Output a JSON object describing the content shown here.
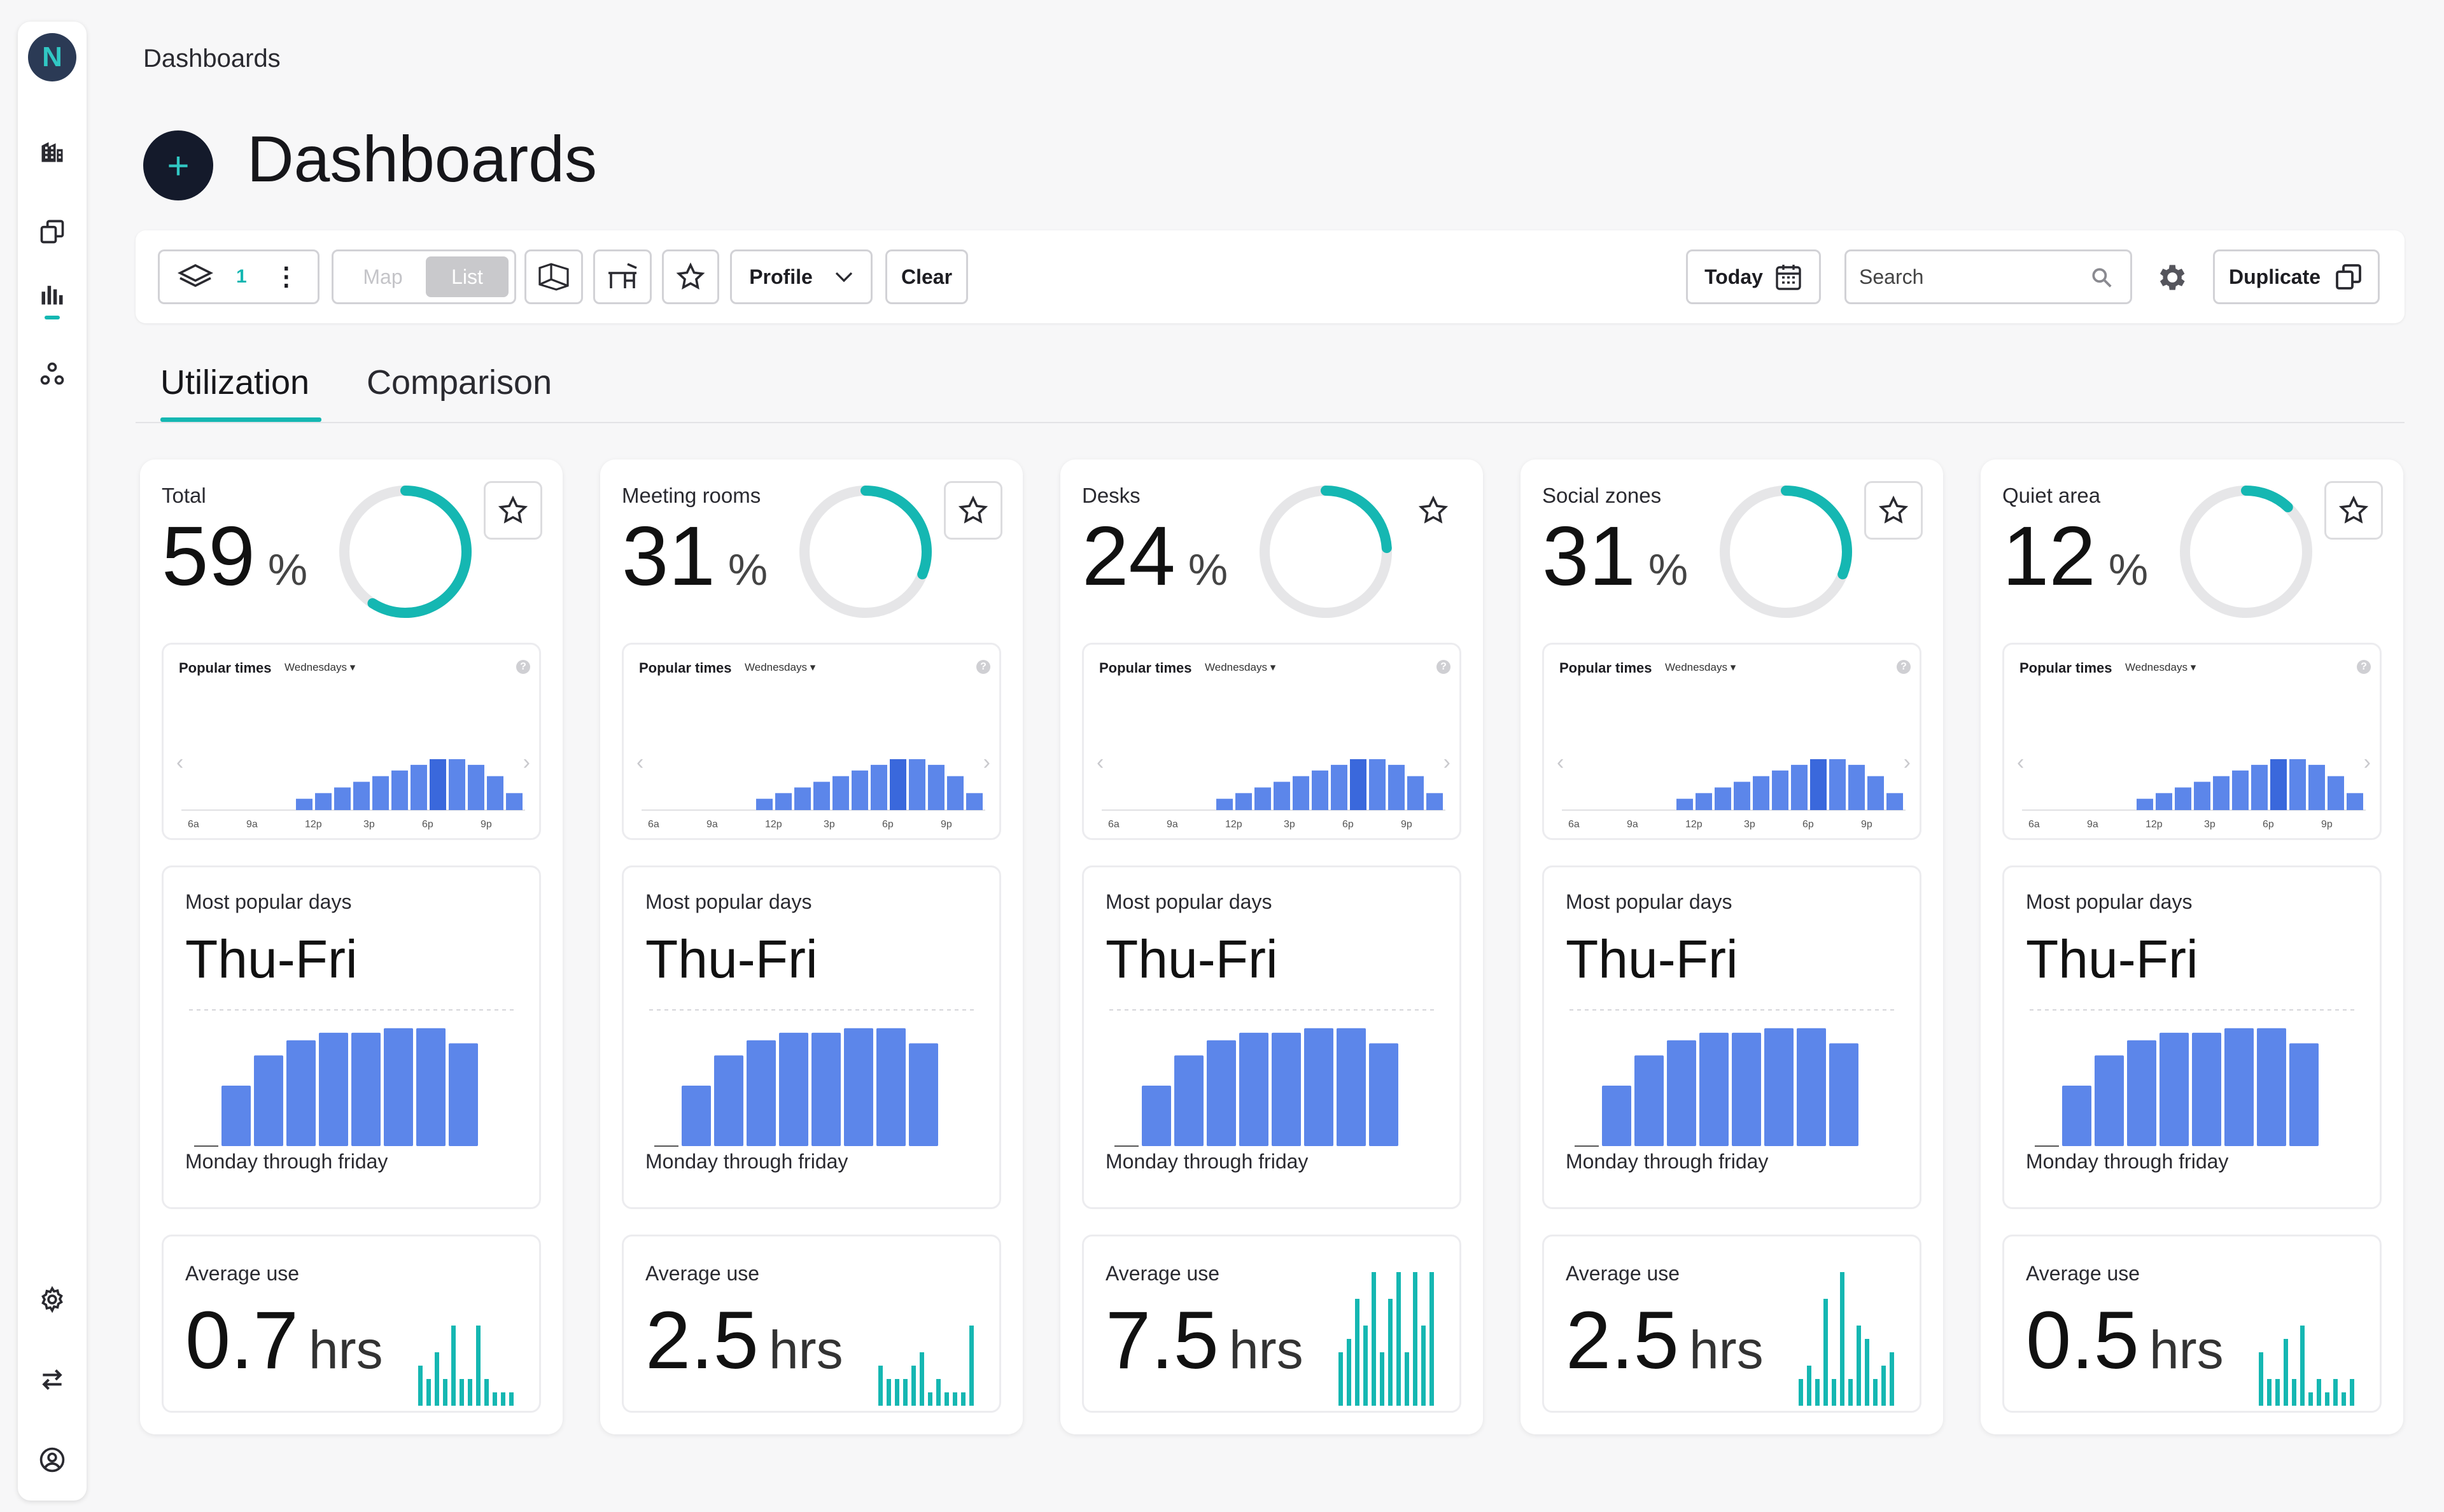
{
  "sidebar": {
    "logo": "N",
    "icons": [
      "buildings-icon",
      "floors-icon",
      "analytics-icon",
      "groups-icon",
      "settings-icon",
      "switch-icon",
      "account-icon"
    ]
  },
  "header": {
    "breadcrumb": "Dashboards",
    "title": "Dashboards",
    "add_symbol": "+"
  },
  "toolbar": {
    "layers_count": "1",
    "view_map": "Map",
    "view_list": "List",
    "profile_label": "Profile",
    "clear_label": "Clear",
    "today_label": "Today",
    "search_placeholder": "Search",
    "duplicate_label": "Duplicate"
  },
  "tabs": [
    "Utilization",
    "Comparison"
  ],
  "colors": {
    "accent": "#15b7b2",
    "bar_blue": "#5c86ea",
    "bar_highlight": "#3a68dc",
    "donut_track": "#e6e6e8"
  },
  "cards": [
    {
      "title": "Total",
      "percent": "59",
      "percent_sign": "%",
      "percent_value": 59,
      "popular_label": "Popular times",
      "popular_day": "Wednesdays ▾",
      "popular_ticks": [
        "6a",
        "9a",
        "12p",
        "3p",
        "6p",
        "9p"
      ],
      "popular_values": [
        0,
        0,
        0,
        0,
        0,
        2,
        3,
        4,
        5,
        6,
        7,
        8,
        9,
        9,
        8,
        6,
        3
      ],
      "mpd_title": "Most popular days",
      "mpd_value": "Thu-Fri",
      "mpd_values": [
        0,
        4,
        6,
        7,
        7.5,
        7.5,
        7.8,
        7.8,
        6.8
      ],
      "mpd_foot": "Monday through friday",
      "avg_title": "Average use",
      "avg_value": "0.7",
      "avg_unit": "hrs",
      "avg_values": [
        3,
        2,
        4,
        2,
        6,
        2,
        2,
        6,
        2,
        1,
        1,
        1
      ],
      "star_bordered": true
    },
    {
      "title": "Meeting rooms",
      "percent": "31",
      "percent_sign": "%",
      "percent_value": 31,
      "popular_label": "Popular times",
      "popular_day": "Wednesdays ▾",
      "popular_ticks": [
        "6a",
        "9a",
        "12p",
        "3p",
        "6p",
        "9p"
      ],
      "popular_values": [
        0,
        0,
        0,
        0,
        0,
        2,
        3,
        4,
        5,
        6,
        7,
        8,
        9,
        9,
        8,
        6,
        3
      ],
      "mpd_title": "Most popular days",
      "mpd_value": "Thu-Fri",
      "mpd_values": [
        0,
        4,
        6,
        7,
        7.5,
        7.5,
        7.8,
        7.8,
        6.8
      ],
      "mpd_foot": "Monday through friday",
      "avg_title": "Average use",
      "avg_value": "2.5",
      "avg_unit": "hrs",
      "avg_values": [
        3,
        2,
        2,
        2,
        3,
        4,
        1,
        2,
        1,
        1,
        1,
        6
      ],
      "star_bordered": true
    },
    {
      "title": "Desks",
      "percent": "24",
      "percent_sign": "%",
      "percent_value": 24,
      "popular_label": "Popular times",
      "popular_day": "Wednesdays ▾",
      "popular_ticks": [
        "6a",
        "9a",
        "12p",
        "3p",
        "6p",
        "9p"
      ],
      "popular_values": [
        0,
        0,
        0,
        0,
        0,
        2,
        3,
        4,
        5,
        6,
        7,
        8,
        9,
        9,
        8,
        6,
        3
      ],
      "mpd_title": "Most popular days",
      "mpd_value": "Thu-Fri",
      "mpd_values": [
        0,
        4,
        6,
        7,
        7.5,
        7.5,
        7.8,
        7.8,
        6.8
      ],
      "mpd_foot": "Monday through friday",
      "avg_title": "Average use",
      "avg_value": "7.5",
      "avg_unit": "hrs",
      "avg_values": [
        4,
        5,
        8,
        6,
        10,
        4,
        8,
        10,
        4,
        10,
        6,
        10
      ],
      "star_bordered": false
    },
    {
      "title": "Social zones",
      "percent": "31",
      "percent_sign": "%",
      "percent_value": 31,
      "popular_label": "Popular times",
      "popular_day": "Wednesdays ▾",
      "popular_ticks": [
        "6a",
        "9a",
        "12p",
        "3p",
        "6p",
        "9p"
      ],
      "popular_values": [
        0,
        0,
        0,
        0,
        0,
        2,
        3,
        4,
        5,
        6,
        7,
        8,
        9,
        9,
        8,
        6,
        3
      ],
      "mpd_title": "Most popular days",
      "mpd_value": "Thu-Fri",
      "mpd_values": [
        0,
        4,
        6,
        7,
        7.5,
        7.5,
        7.8,
        7.8,
        6.8
      ],
      "mpd_foot": "Monday through friday",
      "avg_title": "Average use",
      "avg_value": "2.5",
      "avg_unit": "hrs",
      "avg_values": [
        2,
        3,
        2,
        8,
        2,
        10,
        2,
        6,
        5,
        2,
        3,
        4
      ],
      "star_bordered": true
    },
    {
      "title": "Quiet area",
      "percent": "12",
      "percent_sign": "%",
      "percent_value": 12,
      "popular_label": "Popular times",
      "popular_day": "Wednesdays ▾",
      "popular_ticks": [
        "6a",
        "9a",
        "12p",
        "3p",
        "6p",
        "9p"
      ],
      "popular_values": [
        0,
        0,
        0,
        0,
        0,
        2,
        3,
        4,
        5,
        6,
        7,
        8,
        9,
        9,
        8,
        6,
        3
      ],
      "mpd_title": "Most popular days",
      "mpd_value": "Thu-Fri",
      "mpd_values": [
        0,
        4,
        6,
        7,
        7.5,
        7.5,
        7.8,
        7.8,
        6.8
      ],
      "mpd_foot": "Monday through friday",
      "avg_title": "Average use",
      "avg_value": "0.5",
      "avg_unit": "hrs",
      "avg_values": [
        4,
        2,
        2,
        5,
        2,
        6,
        1,
        2,
        1,
        2,
        1,
        2
      ],
      "star_bordered": true
    }
  ]
}
